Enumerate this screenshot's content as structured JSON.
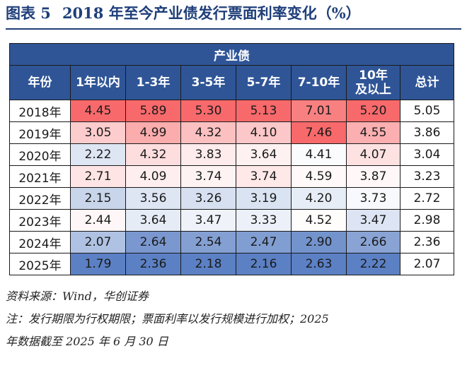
{
  "title": {
    "figure_label": "图表 5",
    "text": "2018 年至今产业债发行票面利率变化（%）"
  },
  "table": {
    "group_header": "产业债",
    "columns": [
      "年份",
      "1年以内",
      "1-3年",
      "3-5年",
      "5-7年",
      "7-10年",
      "10年及以上",
      "总计"
    ],
    "rows": [
      {
        "year": "2018年",
        "values": [
          "4.45",
          "5.89",
          "5.30",
          "5.13",
          "7.01",
          "5.20",
          "5.05"
        ]
      },
      {
        "year": "2019年",
        "values": [
          "3.05",
          "4.99",
          "4.32",
          "4.10",
          "7.46",
          "4.55",
          "3.86"
        ]
      },
      {
        "year": "2020年",
        "values": [
          "2.22",
          "4.32",
          "3.83",
          "3.64",
          "4.41",
          "4.07",
          "3.04"
        ]
      },
      {
        "year": "2021年",
        "values": [
          "2.71",
          "4.09",
          "3.74",
          "3.74",
          "4.59",
          "3.87",
          "3.23"
        ]
      },
      {
        "year": "2022年",
        "values": [
          "2.15",
          "3.56",
          "3.26",
          "3.19",
          "4.20",
          "3.73",
          "2.72"
        ]
      },
      {
        "year": "2023年",
        "values": [
          "2.44",
          "3.64",
          "3.47",
          "3.33",
          "4.52",
          "3.47",
          "2.98"
        ]
      },
      {
        "year": "2024年",
        "values": [
          "2.07",
          "2.64",
          "2.54",
          "2.47",
          "2.90",
          "2.66",
          "2.36"
        ]
      },
      {
        "year": "2025年",
        "values": [
          "1.79",
          "2.36",
          "2.18",
          "2.16",
          "2.63",
          "2.22",
          "2.07"
        ]
      }
    ],
    "heatmap_colors": {
      "low": "#5b80c4",
      "mid": "#ffffff",
      "high": "#f8696b"
    }
  },
  "notes": {
    "source": "资料来源：Wind，华创证券",
    "note_line1": "注：发行期限为行权期限；票面利率以发行规模进行加权；2025",
    "note_line2": "年数据截至 2025 年 6 月 30 日"
  }
}
